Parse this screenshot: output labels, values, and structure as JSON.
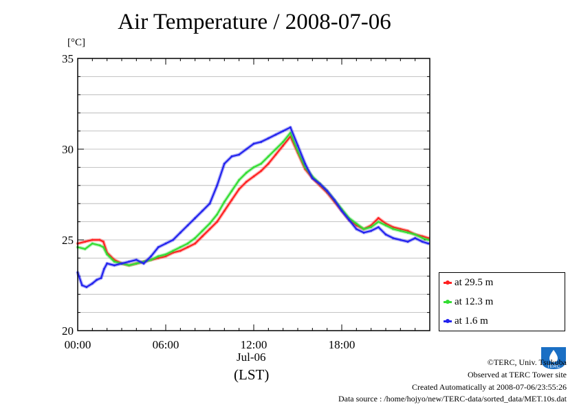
{
  "chart_data": {
    "type": "line",
    "title": "Air Temperature / 2008-07-06",
    "ylabel": "[°C]",
    "xlabel": "(LST)",
    "ylim": [
      20,
      35
    ],
    "yticks": [
      20,
      25,
      30,
      35
    ],
    "xlim_hours": [
      0,
      24
    ],
    "xticks": [
      {
        "hour": 0,
        "label": "00:00"
      },
      {
        "hour": 6,
        "label": "06:00"
      },
      {
        "hour": 12,
        "label": "12:00"
      },
      {
        "hour": 18,
        "label": "18:00"
      }
    ],
    "date_label": "Jul-06",
    "grid": true,
    "legend_position": "bottom-right, outside plot",
    "series": [
      {
        "name": "at 29.5 m",
        "color": "#ff2020",
        "x_hours": [
          0,
          0.5,
          1,
          1.5,
          1.75,
          2,
          2.5,
          3,
          3.5,
          4,
          4.5,
          5,
          5.5,
          6,
          6.5,
          7,
          7.5,
          8,
          8.5,
          9,
          9.5,
          10,
          10.5,
          11,
          11.5,
          12,
          12.5,
          13,
          13.5,
          14,
          14.5,
          15,
          15.5,
          16,
          16.5,
          17,
          17.5,
          18,
          18.5,
          19,
          19.5,
          20,
          20.5,
          21,
          21.5,
          22,
          22.5,
          23,
          23.5,
          23.9
        ],
        "values": [
          24.8,
          24.9,
          25.0,
          25.0,
          24.9,
          24.3,
          23.9,
          23.7,
          23.6,
          23.7,
          23.8,
          23.9,
          24.0,
          24.1,
          24.3,
          24.4,
          24.6,
          24.8,
          25.2,
          25.6,
          26.0,
          26.6,
          27.2,
          27.8,
          28.2,
          28.5,
          28.8,
          29.2,
          29.7,
          30.2,
          30.7,
          29.8,
          28.9,
          28.4,
          28.0,
          27.6,
          27.1,
          26.6,
          26.1,
          25.8,
          25.6,
          25.8,
          26.2,
          25.9,
          25.7,
          25.6,
          25.5,
          25.3,
          25.2,
          25.1
        ]
      },
      {
        "name": "at 12.3 m",
        "color": "#33dd33",
        "x_hours": [
          0,
          0.5,
          1,
          1.5,
          1.75,
          2,
          2.5,
          3,
          3.5,
          4,
          4.5,
          5,
          5.5,
          6,
          6.5,
          7,
          7.5,
          8,
          8.5,
          9,
          9.5,
          10,
          10.5,
          11,
          11.5,
          12,
          12.5,
          13,
          13.5,
          14,
          14.5,
          15,
          15.5,
          16,
          16.5,
          17,
          17.5,
          18,
          18.5,
          19,
          19.5,
          20,
          20.5,
          21,
          21.5,
          22,
          22.5,
          23,
          23.5,
          23.9
        ],
        "values": [
          24.6,
          24.5,
          24.8,
          24.7,
          24.6,
          24.2,
          23.8,
          23.7,
          23.6,
          23.7,
          23.8,
          23.9,
          24.1,
          24.2,
          24.4,
          24.6,
          24.8,
          25.1,
          25.5,
          25.9,
          26.4,
          27.1,
          27.7,
          28.3,
          28.7,
          29.0,
          29.2,
          29.6,
          30.0,
          30.4,
          30.9,
          29.9,
          29.0,
          28.5,
          28.1,
          27.7,
          27.2,
          26.7,
          26.2,
          25.9,
          25.6,
          25.7,
          26.0,
          25.8,
          25.6,
          25.5,
          25.4,
          25.3,
          25.1,
          25.0
        ]
      },
      {
        "name": "at 1.6 m",
        "color": "#2222ee",
        "x_hours": [
          0,
          0.3,
          0.6,
          1,
          1.3,
          1.6,
          1.8,
          2,
          2.5,
          3,
          3.5,
          4,
          4.5,
          5,
          5.5,
          6,
          6.5,
          7,
          7.5,
          8,
          8.5,
          9,
          9.5,
          10,
          10.5,
          11,
          11.5,
          12,
          12.5,
          13,
          13.5,
          14,
          14.5,
          15,
          15.5,
          16,
          16.5,
          17,
          17.5,
          18,
          18.5,
          19,
          19.5,
          20,
          20.5,
          21,
          21.5,
          22,
          22.5,
          23,
          23.5,
          23.9
        ],
        "values": [
          23.2,
          22.5,
          22.4,
          22.6,
          22.8,
          22.9,
          23.4,
          23.7,
          23.6,
          23.7,
          23.8,
          23.9,
          23.7,
          24.1,
          24.6,
          24.8,
          25.0,
          25.4,
          25.8,
          26.2,
          26.6,
          27.0,
          28.0,
          29.2,
          29.6,
          29.7,
          30.0,
          30.3,
          30.4,
          30.6,
          30.8,
          31.0,
          31.2,
          30.2,
          29.2,
          28.4,
          28.1,
          27.7,
          27.2,
          26.6,
          26.1,
          25.6,
          25.4,
          25.5,
          25.7,
          25.3,
          25.1,
          25.0,
          24.9,
          25.1,
          24.9,
          24.8
        ]
      }
    ]
  },
  "credits": {
    "copyright": "©TERC, Univ. Tsukuba",
    "site": "Observed at TERC Tower site",
    "created": "Created Automatically at 2008-07-06/23:55:26",
    "source": "Data source : /home/hojyo/new/TERC-data/sorted_data/MET.10s.dat"
  },
  "logo_text": "TERC"
}
